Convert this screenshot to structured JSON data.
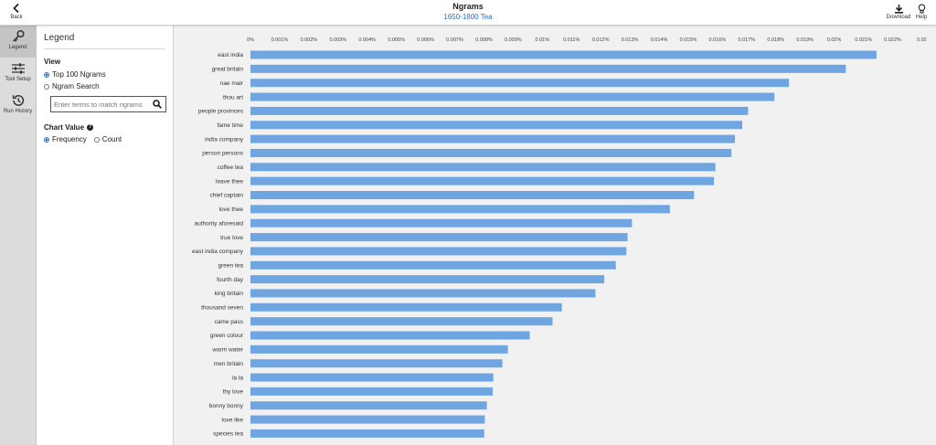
{
  "header": {
    "back_label": "Back",
    "title": "Ngrams",
    "subtitle": "1650-1800 Tea",
    "download_label": "Download",
    "help_label": "Help"
  },
  "rail": {
    "items": [
      {
        "label": "Legend",
        "icon": "legend-key-icon",
        "active": true
      },
      {
        "label": "Tool Setup",
        "icon": "sliders-icon",
        "active": false
      },
      {
        "label": "Run History",
        "icon": "history-icon",
        "active": false
      }
    ]
  },
  "legend": {
    "title": "Legend",
    "view_heading": "View",
    "view_options": [
      "Top 100 Ngrams",
      "Ngram Search"
    ],
    "view_selected": "Top 100 Ngrams",
    "search_placeholder": "Enter terms to match ngrams",
    "chart_value_heading": "Chart Value",
    "chart_value_options": [
      "Frequency",
      "Count"
    ],
    "chart_value_selected": "Frequency"
  },
  "colors": {
    "bar": "#6fa6e2",
    "chart_bg": "#f1f1f1",
    "accent": "#2d6fb5"
  },
  "chart_data": {
    "type": "bar",
    "orientation": "horizontal",
    "xticks": [
      "0%",
      "0.001%",
      "0.002%",
      "0.003%",
      "0.004%",
      "0.005%",
      "0.006%",
      "0.007%",
      "0.008%",
      "0.009%",
      "0.01%",
      "0.011%",
      "0.012%",
      "0.013%",
      "0.014%",
      "0.015%",
      "0.016%",
      "0.017%",
      "0.018%",
      "0.019%",
      "0.02%",
      "0.021%",
      "0.022%",
      "0.02"
    ],
    "xlim": [
      0,
      0.023
    ],
    "categories": [
      "east india",
      "great britain",
      "nae mair",
      "thou art",
      "people provinces",
      "fame time",
      "india company",
      "person persons",
      "coffee tea",
      "leave thee",
      "chief captain",
      "love thee",
      "authority aforesaid",
      "true love",
      "east india company",
      "green tea",
      "fourth day",
      "king britain",
      "thousand seven",
      "came pass",
      "green colour",
      "warm water",
      "men britain",
      "la la",
      "thy love",
      "bonny bonny",
      "love like",
      "species tea"
    ],
    "values": [
      0.02145,
      0.0204,
      0.01845,
      0.01795,
      0.01705,
      0.01685,
      0.0166,
      0.01648,
      0.01593,
      0.01588,
      0.0152,
      0.01437,
      0.01307,
      0.01292,
      0.01288,
      0.01252,
      0.01212,
      0.01182,
      0.01067,
      0.01035,
      0.00957,
      0.00882,
      0.00863,
      0.00832,
      0.0083,
      0.0081,
      0.00803,
      0.00801
    ]
  }
}
